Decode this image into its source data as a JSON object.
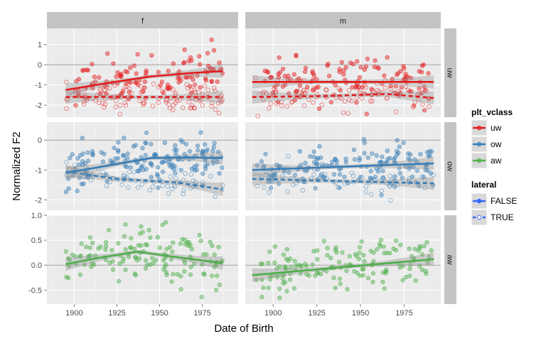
{
  "chart_data": {
    "type": "scatter",
    "xlabel": "Date of Birth",
    "ylabel": "Normalized F2",
    "col_facets": [
      "f",
      "m"
    ],
    "row_facets": [
      "uw",
      "ow",
      "aw"
    ],
    "xlim": [
      1884,
      1996
    ],
    "xticks": [
      1900,
      1925,
      1950,
      1975
    ],
    "grid": "on",
    "legend_placement": "right",
    "legends": [
      {
        "title": "plt_vclass",
        "entries": [
          "uw",
          "ow",
          "aw"
        ]
      },
      {
        "title": "lateral",
        "entries": [
          "FALSE",
          "TRUE"
        ]
      }
    ],
    "colors": {
      "uw": "#e41a1c",
      "ow": "#377eb8",
      "aw": "#4daf4a",
      "lateral_key": "#3366ff"
    },
    "panels": [
      {
        "row": "uw",
        "col": "f",
        "ylim": [
          -2.6,
          1.8
        ],
        "yticks": [
          1,
          0,
          -1,
          -2
        ],
        "trend_false": [
          [
            1895,
            -1.25
          ],
          [
            1920,
            -0.9
          ],
          [
            1945,
            -0.58
          ],
          [
            1970,
            -0.4
          ],
          [
            1987,
            -0.32
          ]
        ],
        "trend_true": [
          [
            1895,
            -1.6
          ],
          [
            1987,
            -1.6
          ]
        ],
        "scatter_false": {
          "x0": 1900,
          "x1": 1987,
          "mean": -0.55,
          "sd": 0.55,
          "n": 120
        },
        "scatter_true": {
          "x0": 1895,
          "x1": 1987,
          "mean": -1.7,
          "sd": 0.35,
          "n": 110
        }
      },
      {
        "row": "uw",
        "col": "m",
        "ylim": [
          -2.6,
          1.8
        ],
        "yticks": [
          1,
          0,
          -1,
          -2
        ],
        "trend_false": [
          [
            1888,
            -0.85
          ],
          [
            1992,
            -0.85
          ]
        ],
        "trend_true": [
          [
            1888,
            -1.6
          ],
          [
            1930,
            -1.55
          ],
          [
            1965,
            -1.45
          ],
          [
            1992,
            -1.65
          ]
        ],
        "scatter_false": {
          "x0": 1895,
          "x1": 1992,
          "mean": -0.85,
          "sd": 0.55,
          "n": 130
        },
        "scatter_true": {
          "x0": 1890,
          "x1": 1992,
          "mean": -1.6,
          "sd": 0.35,
          "n": 90
        }
      },
      {
        "row": "ow",
        "col": "f",
        "ylim": [
          -2.35,
          0.6
        ],
        "yticks": [
          0,
          -1,
          -2
        ],
        "trend_false": [
          [
            1895,
            -1.1
          ],
          [
            1920,
            -0.85
          ],
          [
            1945,
            -0.6
          ],
          [
            1965,
            -0.58
          ],
          [
            1987,
            -0.6
          ]
        ],
        "trend_true": [
          [
            1895,
            -1.05
          ],
          [
            1925,
            -1.3
          ],
          [
            1960,
            -1.42
          ],
          [
            1987,
            -1.65
          ]
        ],
        "scatter_false": {
          "x0": 1895,
          "x1": 1987,
          "mean": -0.7,
          "sd": 0.35,
          "n": 160
        },
        "scatter_true": {
          "x0": 1895,
          "x1": 1987,
          "mean": -1.4,
          "sd": 0.25,
          "n": 70
        }
      },
      {
        "row": "ow",
        "col": "m",
        "ylim": [
          -2.35,
          0.6
        ],
        "yticks": [
          0,
          -1,
          -2
        ],
        "trend_false": [
          [
            1888,
            -1.0
          ],
          [
            1992,
            -0.78
          ]
        ],
        "trend_true": [
          [
            1888,
            -1.3
          ],
          [
            1992,
            -1.45
          ]
        ],
        "scatter_false": {
          "x0": 1890,
          "x1": 1992,
          "mean": -0.9,
          "sd": 0.35,
          "n": 150
        },
        "scatter_true": {
          "x0": 1890,
          "x1": 1992,
          "mean": -1.4,
          "sd": 0.25,
          "n": 60
        }
      },
      {
        "row": "aw",
        "col": "f",
        "ylim": [
          -0.78,
          1.0
        ],
        "yticks": [
          1.0,
          0.5,
          0.0,
          -0.5
        ],
        "trend_false": [
          [
            1895,
            0.02
          ],
          [
            1915,
            0.15
          ],
          [
            1937,
            0.27
          ],
          [
            1960,
            0.16
          ],
          [
            1987,
            0.04
          ]
        ],
        "trend_true": null,
        "scatter_false": {
          "x0": 1895,
          "x1": 1987,
          "mean": 0.15,
          "sd": 0.28,
          "n": 140
        },
        "scatter_true": null
      },
      {
        "row": "aw",
        "col": "m",
        "ylim": [
          -0.78,
          1.0
        ],
        "yticks": [
          1.0,
          0.5,
          0.0,
          -0.5
        ],
        "trend_false": [
          [
            1888,
            -0.2
          ],
          [
            1992,
            0.12
          ]
        ],
        "trend_true": null,
        "scatter_false": {
          "x0": 1890,
          "x1": 1992,
          "mean": 0.0,
          "sd": 0.25,
          "n": 150
        },
        "scatter_true": null
      }
    ]
  }
}
